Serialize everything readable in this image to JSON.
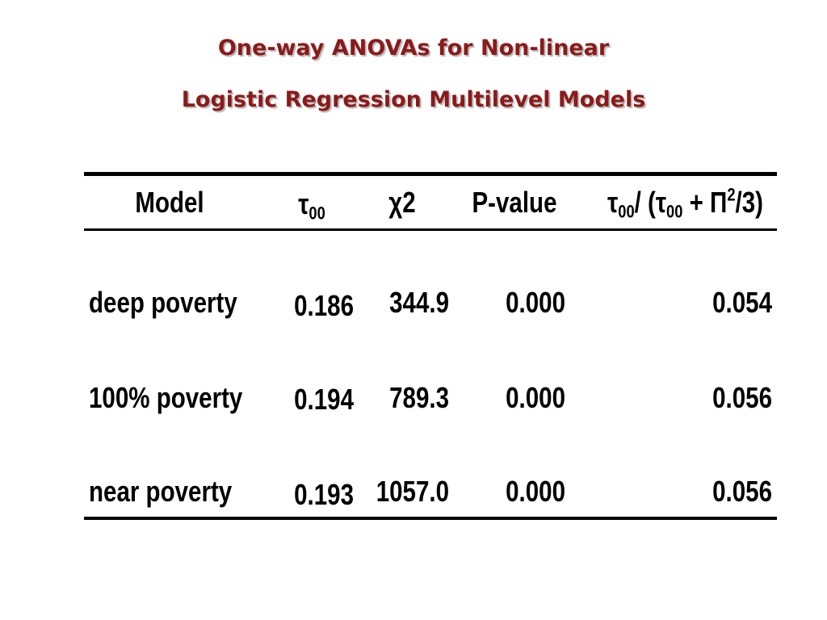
{
  "title": {
    "line1": "One-way ANOVAs for Non-linear",
    "line2": "Logistic Regression Multilevel Models"
  },
  "table": {
    "headers": {
      "model": "Model",
      "tau_symbol": "τ",
      "tau_sub": "00",
      "chi2": "χ2",
      "pvalue": "P-value",
      "icc": {
        "tau1": "τ",
        "sub1": "00",
        "mid": "/ (τ",
        "sub2": "00",
        "plus_pi": " + Π",
        "sup": "2",
        "end": "/3)"
      }
    },
    "rows": [
      {
        "model": "deep poverty",
        "tau00": "0.186",
        "chi2": "344.9",
        "pvalue": "0.000",
        "icc": "0.054"
      },
      {
        "model": "100% poverty",
        "tau00": "0.194",
        "chi2": "789.3",
        "pvalue": "0.000",
        "icc": "0.056"
      },
      {
        "model": "near poverty",
        "tau00": "0.193",
        "chi2": "1057.0",
        "pvalue": "0.000",
        "icc": "0.056"
      }
    ]
  }
}
